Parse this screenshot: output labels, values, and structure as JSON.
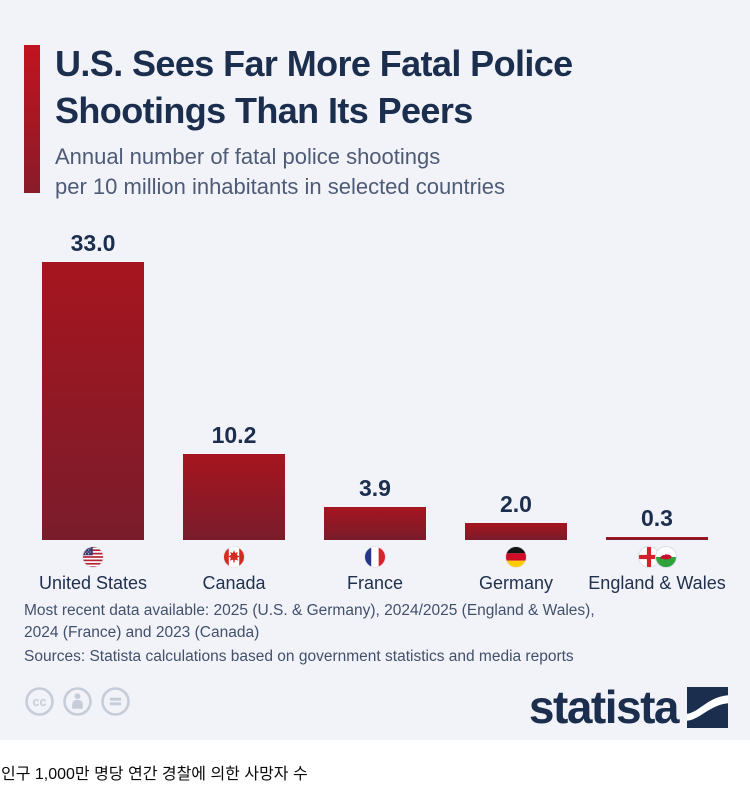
{
  "header": {
    "title": "U.S. Sees Far More Fatal Police\nShootings Than Its Peers",
    "subtitle": "Annual number of fatal police shootings\nper 10 million inhabitants in selected countries"
  },
  "chart_data": {
    "type": "bar",
    "title": "U.S. Sees Far More Fatal Police Shootings Than Its Peers",
    "subtitle": "Annual number of fatal police shootings per 10 million inhabitants in selected countries",
    "categories": [
      "United States",
      "Canada",
      "France",
      "Germany",
      "England & Wales"
    ],
    "values": [
      33.0,
      10.2,
      3.9,
      2.0,
      0.3
    ],
    "value_labels": [
      "33.0",
      "10.2",
      "3.9",
      "2.0",
      "0.3"
    ],
    "flags": [
      [
        "us-flag-icon"
      ],
      [
        "canada-flag-icon"
      ],
      [
        "france-flag-icon"
      ],
      [
        "germany-flag-icon"
      ],
      [
        "england-flag-icon",
        "wales-flag-icon"
      ]
    ],
    "xlabel": "",
    "ylabel": "",
    "ylim": [
      0,
      33
    ],
    "grid": false,
    "legend": "none",
    "bar_color_top": "#a6151f",
    "bar_color_bottom": "#7a1c2b"
  },
  "footnotes": {
    "recency": "Most recent data available: 2025 (U.S. & Germany), 2024/2025 (England & Wales),\n2024 (France) and 2023 (Canada)",
    "sources": "Sources: Statista calculations based on government statistics and media reports"
  },
  "branding": {
    "logo_text": "statista",
    "license_icons": [
      "cc-icon",
      "attribution-icon",
      "no-derivatives-icon"
    ]
  },
  "caption": {
    "korean_caption": "인구 1,000만 명당 연간 경찰에 의한 사망자 수"
  },
  "colors": {
    "chart_background": "#f1f3f8",
    "accent_red_top": "#c2141f",
    "accent_red_bottom": "#8a1b29",
    "title_navy": "#1b2e4e",
    "subtitle_gray": "#4e5b76",
    "footnote_gray": "#42506b",
    "license_icon_gray": "#c6cdd9",
    "logo_navy": "#1b2e4d"
  }
}
